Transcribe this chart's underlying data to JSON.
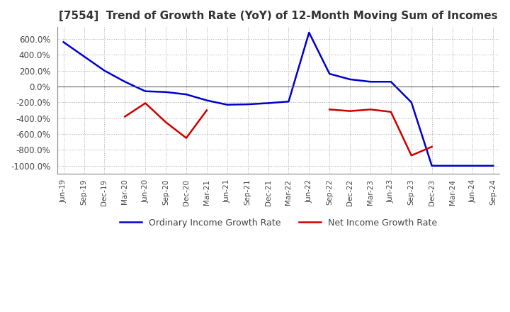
{
  "title": "[7554]  Trend of Growth Rate (YoY) of 12-Month Moving Sum of Incomes",
  "title_fontsize": 11,
  "ylim": [
    -1100,
    750
  ],
  "yticks": [
    600,
    400,
    200,
    0,
    -200,
    -400,
    -600,
    -800,
    -1000
  ],
  "ytick_labels": [
    "600.0%",
    "400.0%",
    "200.0%",
    "0.0%",
    "-200.0%",
    "-400.0%",
    "-600.0%",
    "-800.0%",
    "-1000.0%"
  ],
  "background_color": "#ffffff",
  "grid_color": "#aaaaaa",
  "ordinary_color": "#0000cc",
  "net_color": "#cc0000",
  "legend_labels": [
    "Ordinary Income Growth Rate",
    "Net Income Growth Rate"
  ],
  "x_dates": [
    "Jun-19",
    "Sep-19",
    "Dec-19",
    "Mar-20",
    "Jun-20",
    "Sep-20",
    "Dec-20",
    "Mar-21",
    "Jun-21",
    "Sep-21",
    "Dec-21",
    "Mar-22",
    "Jun-22",
    "Sep-22",
    "Dec-22",
    "Mar-23",
    "Jun-23",
    "Sep-23",
    "Dec-23",
    "Mar-24",
    "Jun-24",
    "Sep-24"
  ],
  "ordinary_y": [
    560,
    380,
    200,
    60,
    -60,
    -70,
    -100,
    -175,
    -230,
    -225,
    -210,
    -190,
    680,
    160,
    90,
    60,
    60,
    -200,
    -1000,
    -1000,
    -1000,
    -1000
  ],
  "net_y": [
    null,
    null,
    null,
    -380,
    -210,
    -450,
    -650,
    -300,
    null,
    null,
    null,
    null,
    null,
    -290,
    -310,
    -290,
    -320,
    -870,
    -760,
    null,
    null,
    null
  ]
}
